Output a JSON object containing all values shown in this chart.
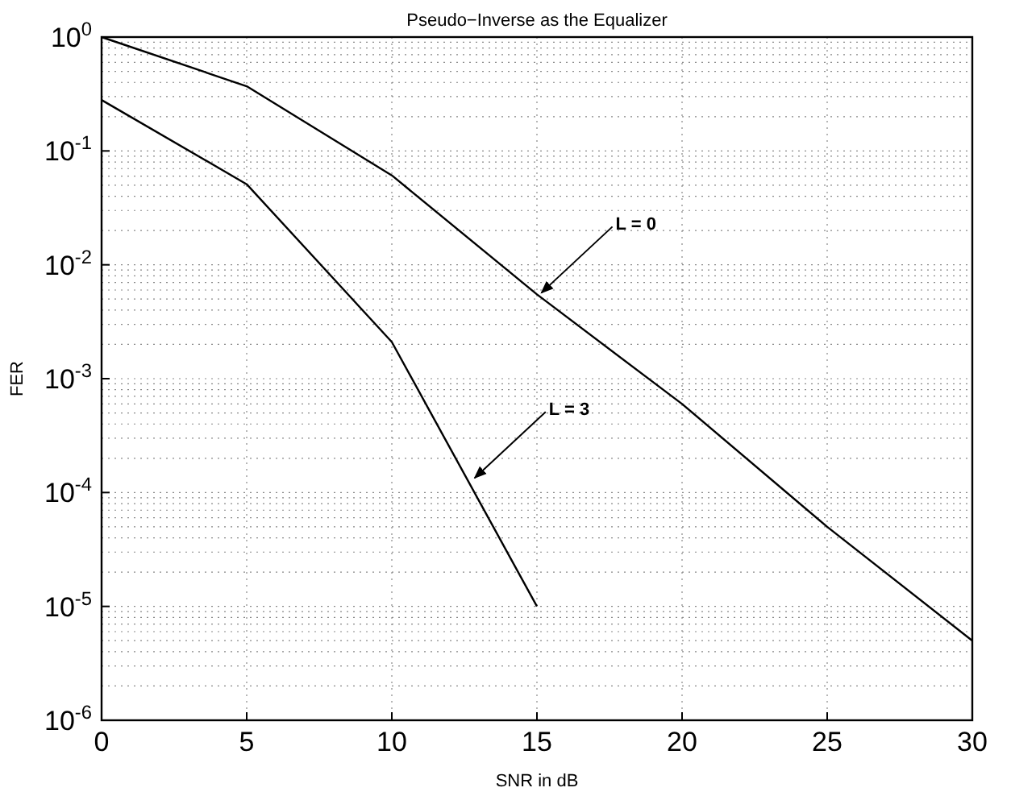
{
  "chart_data": {
    "type": "line",
    "title": "Pseudo−Inverse as the Equalizer",
    "xlabel": "SNR in dB",
    "ylabel": "FER",
    "log": true,
    "grid": true,
    "marker": "none",
    "line_style": "solid",
    "xlim": [
      0,
      30
    ],
    "xticks": [
      0,
      5,
      10,
      15,
      20,
      25,
      30
    ],
    "ylim": [
      1e-06,
      1
    ],
    "yticks": [
      {
        "value": 1e-06,
        "label": "10$^{-6}$"
      },
      {
        "value": 1e-05,
        "label": "10$^{-5}$"
      },
      {
        "value": 0.0001,
        "label": "10$^{-4}$"
      },
      {
        "value": 0.001,
        "label": "10$^{-3}$"
      },
      {
        "value": 0.01,
        "label": "10$^{-2}$"
      },
      {
        "value": 0.1,
        "label": "10$^{-1}$"
      },
      {
        "value": 1,
        "label": "10$^{0}$"
      }
    ],
    "series": [
      {
        "color": "#000000",
        "x": [
          0,
          5,
          10,
          15,
          20,
          25,
          30
        ],
        "values": [
          1,
          0.37,
          0.061,
          0.0055,
          0.0006,
          5e-05,
          5e-06
        ]
      },
      {
        "color": "#000000",
        "x": [
          0,
          5,
          10,
          15
        ],
        "values": [
          0.28,
          0.051,
          0.0021,
          1e-05
        ]
      }
    ],
    "annotations": [
      {
        "text": "L = 0",
        "x": 15.1,
        "y": 0.0055
      },
      {
        "text": "L = 3",
        "x": 12.8,
        "y": 0.00013
      }
    ]
  }
}
